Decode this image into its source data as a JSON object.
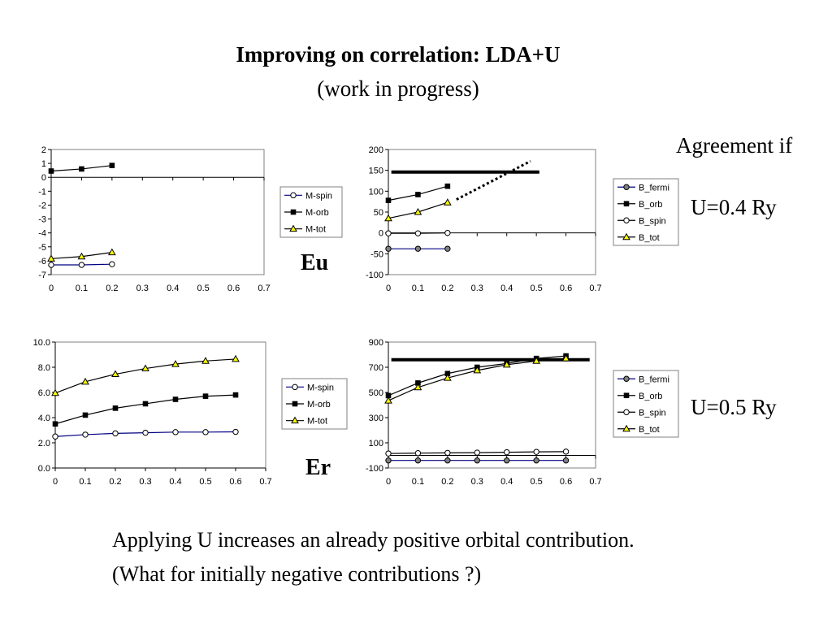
{
  "slide": {
    "title": "Improving on correlation: LDA+U",
    "subtitle": "(work in progress)",
    "agreement": "Agreement if",
    "u_eu": "U=0.4 Ry",
    "u_er": "U=0.5 Ry",
    "label_eu": "Eu",
    "label_er": "Er",
    "footer_1": "Applying U increases an already positive orbital contribution.",
    "footer_2": "(What for initially negative contributions ?)"
  },
  "colors": {
    "spin_line": "#000080",
    "tot_marker": "#ffff00",
    "fermi_marker": "#808080"
  },
  "chart_data": [
    {
      "id": "eu-moments",
      "type": "line",
      "title": "",
      "xlabel": "",
      "ylabel": "",
      "x": [
        0,
        0.1,
        0.2
      ],
      "xlim": [
        0,
        0.7
      ],
      "xticks": [
        0,
        0.1,
        0.2,
        0.3,
        0.4,
        0.5,
        0.6,
        0.7
      ],
      "xtick_labels": [
        "0",
        "0.1",
        "0.2",
        "0.3",
        "0.4",
        "0.5",
        "0.6",
        "0.7"
      ],
      "ylim": [
        -7,
        2
      ],
      "yticks": [
        2,
        1,
        0,
        -1,
        -2,
        -3,
        -4,
        -5,
        -6,
        -7
      ],
      "ytick_labels": [
        "2",
        "1",
        "0",
        "-1",
        "-2",
        "-3",
        "-4",
        "-5",
        "-6",
        "-7"
      ],
      "grid": false,
      "legend_position": "right",
      "series": [
        {
          "name": "M-spin",
          "marker": "circle-open",
          "line": "navy",
          "values": [
            -6.3,
            -6.3,
            -6.25
          ]
        },
        {
          "name": "M-orb",
          "marker": "square-filled",
          "line": "black",
          "values": [
            0.45,
            0.6,
            0.85
          ]
        },
        {
          "name": "M-tot",
          "marker": "triangle-yellow",
          "line": "black",
          "values": [
            -5.85,
            -5.7,
            -5.4
          ]
        }
      ]
    },
    {
      "id": "eu-fields",
      "type": "line",
      "title": "",
      "xlabel": "",
      "ylabel": "",
      "x": [
        0,
        0.1,
        0.2
      ],
      "xlim": [
        0,
        0.7
      ],
      "xticks": [
        0,
        0.1,
        0.2,
        0.3,
        0.4,
        0.5,
        0.6,
        0.7
      ],
      "xtick_labels": [
        "0",
        "0.1",
        "0.2",
        "0.3",
        "0.4",
        "0.5",
        "0.6",
        "0.7"
      ],
      "ylim": [
        -100,
        200
      ],
      "yticks": [
        200,
        150,
        100,
        50,
        0,
        -50,
        -100
      ],
      "ytick_labels": [
        "200",
        "150",
        "100",
        "50",
        "0",
        "-50",
        "-100"
      ],
      "grid": false,
      "legend_position": "right",
      "series": [
        {
          "name": "B_fermi",
          "marker": "circle-gray",
          "line": "navy",
          "values": [
            -38,
            -38,
            -38
          ]
        },
        {
          "name": "B_orb",
          "marker": "square-filled",
          "line": "black",
          "values": [
            78,
            92,
            112
          ]
        },
        {
          "name": "B_spin",
          "marker": "circle-open",
          "line": "black",
          "values": [
            -1,
            -1,
            0
          ]
        },
        {
          "name": "B_tot",
          "marker": "triangle-yellow",
          "line": "black",
          "values": [
            35,
            50,
            73
          ]
        }
      ],
      "reference_line": {
        "y": 146,
        "x": [
          0.01,
          0.51
        ]
      },
      "extrapolation": {
        "x": [
          0.23,
          0.48
        ],
        "y": [
          80,
          172
        ]
      }
    },
    {
      "id": "er-moments",
      "type": "line",
      "title": "",
      "xlabel": "",
      "ylabel": "",
      "x": [
        0,
        0.1,
        0.2,
        0.3,
        0.4,
        0.5,
        0.6
      ],
      "xlim": [
        0,
        0.7
      ],
      "xticks": [
        0,
        0.1,
        0.2,
        0.3,
        0.4,
        0.5,
        0.6,
        0.7
      ],
      "xtick_labels": [
        "0",
        "0.1",
        "0.2",
        "0.3",
        "0.4",
        "0.5",
        "0.6",
        "0.7"
      ],
      "ylim": [
        0,
        10
      ],
      "yticks": [
        10,
        8,
        6,
        4,
        2,
        0
      ],
      "ytick_labels": [
        "10.0",
        "8.0",
        "6.0",
        "4.0",
        "2.0",
        "0.0"
      ],
      "grid": false,
      "legend_position": "right",
      "series": [
        {
          "name": "M-spin",
          "marker": "circle-open",
          "line": "navy",
          "values": [
            2.5,
            2.65,
            2.75,
            2.8,
            2.85,
            2.85,
            2.87
          ]
        },
        {
          "name": "M-orb",
          "marker": "square-filled",
          "line": "black",
          "values": [
            3.5,
            4.2,
            4.75,
            5.1,
            5.45,
            5.7,
            5.8
          ]
        },
        {
          "name": "M-tot",
          "marker": "triangle-yellow",
          "line": "black",
          "values": [
            5.95,
            6.85,
            7.45,
            7.9,
            8.25,
            8.5,
            8.65
          ]
        }
      ]
    },
    {
      "id": "er-fields",
      "type": "line",
      "title": "",
      "xlabel": "",
      "ylabel": "",
      "x": [
        0,
        0.1,
        0.2,
        0.3,
        0.4,
        0.5,
        0.6
      ],
      "xlim": [
        0,
        0.7
      ],
      "xticks": [
        0,
        0.1,
        0.2,
        0.3,
        0.4,
        0.5,
        0.6,
        0.7
      ],
      "xtick_labels": [
        "0",
        "0.1",
        "0.2",
        "0.3",
        "0.4",
        "0.5",
        "0.6",
        "0.7"
      ],
      "ylim": [
        -100,
        900
      ],
      "yticks": [
        900,
        700,
        500,
        300,
        100,
        -100
      ],
      "ytick_labels": [
        "900",
        "700",
        "500",
        "300",
        "100",
        "-100"
      ],
      "grid": false,
      "legend_position": "right",
      "series": [
        {
          "name": "B_fermi",
          "marker": "circle-gray",
          "line": "navy",
          "values": [
            -40,
            -40,
            -40,
            -40,
            -40,
            -40,
            -40
          ]
        },
        {
          "name": "B_orb",
          "marker": "square-filled",
          "line": "black",
          "values": [
            475,
            575,
            650,
            700,
            730,
            770,
            790
          ]
        },
        {
          "name": "B_spin",
          "marker": "circle-open",
          "line": "black",
          "values": [
            15,
            18,
            20,
            22,
            25,
            28,
            30
          ]
        },
        {
          "name": "B_tot",
          "marker": "triangle-yellow",
          "line": "black",
          "values": [
            435,
            540,
            615,
            675,
            720,
            750,
            770
          ]
        }
      ],
      "reference_line": {
        "y": 760,
        "x": [
          0.01,
          0.68
        ]
      }
    }
  ]
}
